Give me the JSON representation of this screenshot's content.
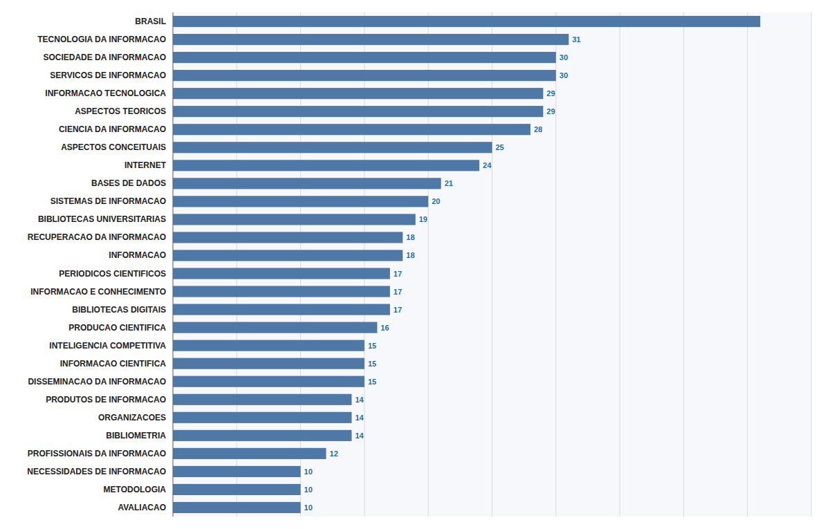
{
  "chart_data": {
    "type": "bar",
    "orientation": "horizontal",
    "categories": [
      "BRASIL",
      "TECNOLOGIA DA INFORMACAO",
      "SOCIEDADE DA INFORMACAO",
      "SERVICOS DE INFORMACAO",
      "INFORMACAO TECNOLOGICA",
      "ASPECTOS TEORICOS",
      "CIENCIA DA INFORMACAO",
      "ASPECTOS CONCEITUAIS",
      "INTERNET",
      "BASES DE DADOS",
      "SISTEMAS DE INFORMACAO",
      "BIBLIOTECAS UNIVERSITARIAS",
      "RECUPERACAO DA INFORMACAO",
      "INFORMACAO",
      "PERIODICOS CIENTIFICOS",
      "INFORMACAO E CONHECIMENTO",
      "BIBLIOTECAS DIGITAIS",
      "PRODUCAO CIENTIFICA",
      "INTELIGENCIA COMPETITIVA",
      "INFORMACAO CIENTIFICA",
      "DISSEMINACAO DA INFORMACAO",
      "PRODUTOS DE INFORMACAO",
      "ORGANIZACOES",
      "BIBLIOMETRIA",
      "PROFISSIONAIS DA INFORMACAO",
      "NECESSIDADES DE INFORMACAO",
      "METODOLOGIA",
      "AVALIACAO"
    ],
    "values": [
      46,
      31,
      30,
      30,
      29,
      29,
      28,
      25,
      24,
      21,
      20,
      19,
      18,
      18,
      17,
      17,
      17,
      16,
      15,
      15,
      15,
      14,
      14,
      14,
      12,
      10,
      10,
      10
    ],
    "value_labels": [
      null,
      "31",
      "30",
      "30",
      "29",
      "29",
      "28",
      "25",
      "24",
      "21",
      "20",
      "19",
      "18",
      "18",
      "17",
      "17",
      "17",
      "16",
      "15",
      "15",
      "15",
      "14",
      "14",
      "14",
      "12",
      "10",
      "10",
      "10"
    ],
    "data_labels": true,
    "xlim": [
      0,
      50
    ],
    "xticks": [
      0,
      5,
      10,
      15,
      20,
      25,
      30,
      35,
      40,
      45,
      50
    ],
    "grid": true,
    "tick_labels": false
  }
}
